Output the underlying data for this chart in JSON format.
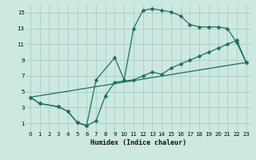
{
  "xlabel": "Humidex (Indice chaleur)",
  "bg_color": "#cce8e0",
  "grid_color": "#aacccc",
  "line_color": "#1e6e64",
  "xlim": [
    -0.5,
    23.5
  ],
  "ylim": [
    0,
    16
  ],
  "xticks": [
    0,
    1,
    2,
    3,
    4,
    5,
    6,
    7,
    8,
    9,
    10,
    11,
    12,
    13,
    14,
    15,
    16,
    17,
    18,
    19,
    20,
    21,
    22,
    23
  ],
  "yticks": [
    1,
    3,
    5,
    7,
    9,
    11,
    13,
    15
  ],
  "curve1_x": [
    0,
    1,
    3,
    4,
    5,
    6,
    7,
    8,
    9,
    11,
    12,
    13,
    14,
    15,
    16,
    17,
    18,
    19,
    20,
    21,
    22,
    23
  ],
  "curve1_y": [
    4.3,
    3.5,
    3.1,
    2.5,
    1.1,
    0.7,
    1.3,
    4.5,
    6.2,
    6.5,
    7.0,
    7.5,
    7.2,
    8.0,
    8.5,
    9.0,
    9.5,
    10.0,
    10.5,
    11.0,
    11.5,
    8.7
  ],
  "curve2_x": [
    0,
    1,
    3,
    4,
    5,
    6,
    7,
    9,
    10,
    11,
    12,
    13,
    14,
    15,
    16,
    17,
    18,
    19,
    20,
    21,
    22,
    23
  ],
  "curve2_y": [
    4.3,
    3.5,
    3.1,
    2.5,
    1.1,
    0.7,
    6.5,
    9.3,
    6.5,
    13.0,
    15.3,
    15.5,
    15.3,
    15.1,
    14.6,
    13.5,
    13.2,
    13.2,
    13.2,
    13.0,
    11.2,
    8.7
  ],
  "curve3_x": [
    0,
    23
  ],
  "curve3_y": [
    4.3,
    8.7
  ]
}
